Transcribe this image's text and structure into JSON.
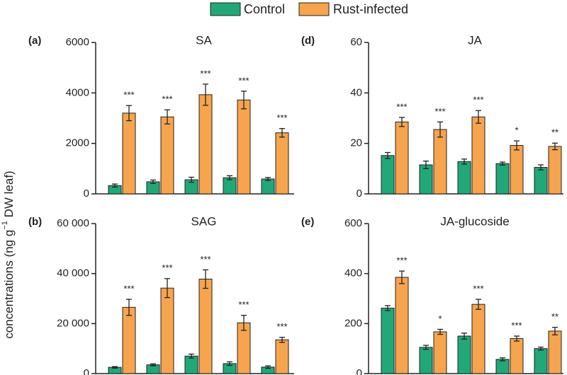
{
  "chart_data": [
    {
      "type": "bar",
      "panel_label": "(a)",
      "title": "SA",
      "categories": [
        null,
        null,
        null,
        null,
        null
      ],
      "ylim": [
        0,
        6000
      ],
      "yticks": [
        0,
        2000,
        4000,
        6000
      ],
      "series": [
        {
          "name": "Control",
          "color": "#22a878",
          "values": [
            330,
            480,
            560,
            640,
            590
          ],
          "errors": [
            60,
            70,
            100,
            80,
            60
          ]
        },
        {
          "name": "Rust-infected",
          "color": "#f7a44e",
          "values": [
            3200,
            3050,
            3930,
            3720,
            2420
          ],
          "errors": [
            300,
            280,
            420,
            350,
            170
          ],
          "significance": [
            "***",
            "***",
            "***",
            "***",
            "***"
          ]
        }
      ]
    },
    {
      "type": "bar",
      "panel_label": "(d)",
      "title": "JA",
      "categories": [
        null,
        null,
        null,
        null,
        null
      ],
      "ylim": [
        0,
        60
      ],
      "yticks": [
        0,
        20,
        40,
        60
      ],
      "series": [
        {
          "name": "Control",
          "color": "#22a878",
          "values": [
            15.2,
            11.5,
            12.8,
            12,
            10.5
          ],
          "errors": [
            1.2,
            1.5,
            1,
            0.6,
            1
          ]
        },
        {
          "name": "Rust-infected",
          "color": "#f7a44e",
          "values": [
            28.5,
            25.5,
            30.5,
            19.2,
            18.8
          ],
          "errors": [
            1.8,
            3,
            2.5,
            1.8,
            1.3
          ],
          "significance": [
            "***",
            "***",
            "***",
            "*",
            "**"
          ]
        }
      ]
    },
    {
      "type": "bar",
      "panel_label": "(b)",
      "title": "SAG",
      "categories": [
        null,
        null,
        null,
        null,
        null
      ],
      "ylim": [
        0,
        60000
      ],
      "yticks": [
        0,
        {
          "value": 20000,
          "label": "20 000"
        },
        {
          "value": 40000,
          "label": "40 000"
        },
        {
          "value": 60000,
          "label": "60 000"
        }
      ],
      "series": [
        {
          "name": "Control",
          "color": "#22a878",
          "values": [
            2500,
            3500,
            7000,
            4000,
            2600
          ],
          "errors": [
            300,
            400,
            800,
            700,
            500
          ]
        },
        {
          "name": "Rust-infected",
          "color": "#f7a44e",
          "values": [
            26500,
            34200,
            37800,
            20300,
            13500
          ],
          "errors": [
            3200,
            3800,
            3700,
            3000,
            1000
          ],
          "significance": [
            "***",
            "***",
            "***",
            "***",
            "***"
          ]
        }
      ]
    },
    {
      "type": "bar",
      "panel_label": "(e)",
      "title": "JA-glucoside",
      "categories": [
        null,
        null,
        null,
        null,
        null
      ],
      "ylim": [
        0,
        600
      ],
      "yticks": [
        0,
        200,
        400,
        600
      ],
      "series": [
        {
          "name": "Control",
          "color": "#22a878",
          "values": [
            262,
            105,
            150,
            57,
            100
          ],
          "errors": [
            10,
            8,
            12,
            6,
            6
          ]
        },
        {
          "name": "Rust-infected",
          "color": "#f7a44e",
          "values": [
            385,
            167,
            277,
            140,
            170
          ],
          "errors": [
            25,
            10,
            20,
            10,
            15
          ],
          "significance": [
            "***",
            "*",
            "***",
            "***",
            "**"
          ]
        }
      ]
    }
  ],
  "y_label": {
    "text": "concentrations (ng g",
    "superscript": "−1",
    "suffix": " DW leaf)"
  }
}
